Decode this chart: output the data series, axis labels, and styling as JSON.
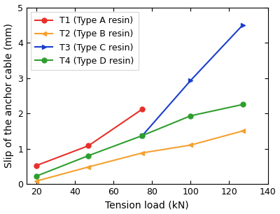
{
  "series": [
    {
      "label": "T1 (Type A resin)",
      "x": [
        20,
        47,
        75
      ],
      "y": [
        0.52,
        1.08,
        2.12
      ],
      "color": "#e8302a",
      "marker": "o",
      "markersize": 5,
      "markerfacecolor": "#e8302a"
    },
    {
      "label": "T2 (Type B resin)",
      "x": [
        20,
        47,
        75,
        100,
        127
      ],
      "y": [
        0.08,
        0.48,
        0.88,
        1.1,
        1.5
      ],
      "color": "#f5a030",
      "marker": "<",
      "markersize": 5,
      "markerfacecolor": "#f5a030"
    },
    {
      "label": "T3 (Type C resin)",
      "x": [
        75,
        100,
        127
      ],
      "y": [
        1.37,
        2.93,
        4.5
      ],
      "color": "#1a3fcc",
      "marker": ">",
      "markersize": 5,
      "markerfacecolor": "#1a3fcc"
    },
    {
      "label": "T4 (Type D resin)",
      "x": [
        20,
        47,
        75,
        100,
        127
      ],
      "y": [
        0.22,
        0.8,
        1.37,
        1.93,
        2.25
      ],
      "color": "#2e9e2e",
      "marker": "o",
      "markersize": 5,
      "markerfacecolor": "#2e9e2e"
    }
  ],
  "xlim": [
    15,
    140
  ],
  "ylim": [
    0,
    5
  ],
  "xticks": [
    20,
    40,
    60,
    80,
    100,
    120,
    140
  ],
  "yticks": [
    0,
    1,
    2,
    3,
    4,
    5
  ],
  "xlabel": "Tension load (kN)",
  "ylabel": "Slip of the anchor cable (mm)",
  "legend_loc": "upper left",
  "axis_fontsize": 10,
  "tick_fontsize": 9,
  "legend_fontsize": 9,
  "linewidth": 1.5,
  "figsize": [
    4.0,
    3.06
  ],
  "dpi": 100
}
